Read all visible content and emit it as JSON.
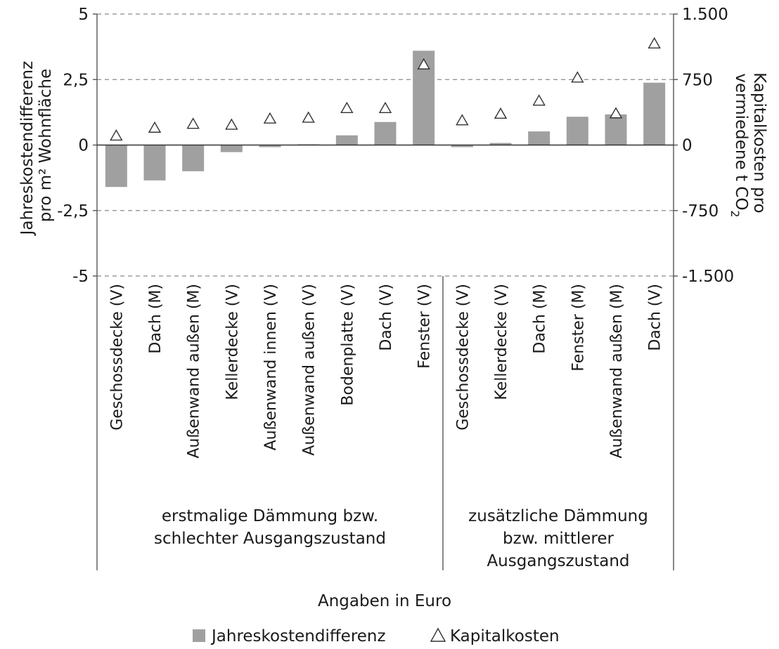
{
  "chart_data": {
    "type": "bar",
    "categories": [
      "Geschossdecke (V)",
      "Dach (M)",
      "Außenwand außen (M)",
      "Kellerdecke (V)",
      "Außenwand innen (V)",
      "Außenwand außen (V)",
      "Bodenplatte (V)",
      "Dach (V)",
      "Fenster (V)",
      "Geschossdecke (V)",
      "Kellerdecke (V)",
      "Dach (M)",
      "Fenster (M)",
      "Außenwand außen (M)",
      "Dach (V)"
    ],
    "groups": [
      {
        "label_lines": [
          "erstmalige Dämmung bzw.",
          "schlechter Ausgangszustand"
        ],
        "start": 0,
        "end": 8
      },
      {
        "label_lines": [
          "zusätzliche Dämmung",
          "bzw. mittlerer",
          "Ausgangszustand"
        ],
        "start": 9,
        "end": 14
      }
    ],
    "series": [
      {
        "name": "Jahreskostendifferenz",
        "type": "bar",
        "axis": "left",
        "color": "#a0a0a0",
        "values": [
          -1.6,
          -1.35,
          -1.0,
          -0.27,
          -0.08,
          0.03,
          0.37,
          0.88,
          3.6,
          -0.08,
          0.08,
          0.52,
          1.08,
          1.17,
          2.38
        ]
      },
      {
        "name": "Kapitalkosten",
        "type": "scatter",
        "marker": "triangle",
        "axis": "right",
        "values": [
          105,
          195,
          240,
          230,
          300,
          310,
          420,
          420,
          920,
          280,
          355,
          505,
          770,
          360,
          1160
        ]
      }
    ],
    "y_left": {
      "label_lines": [
        "Jahreskostendifferenz",
        "pro m² Wohnfläche"
      ],
      "lim": [
        -5,
        5
      ],
      "ticks": [
        5,
        2.5,
        0,
        -2.5,
        -5
      ],
      "tick_labels": [
        "5",
        "2,5",
        "0",
        "-2,5",
        "-5"
      ]
    },
    "y_right": {
      "label_lines": [
        "Kapitalkosten pro",
        "vermiedene t CO"
      ],
      "label_subscript": "2",
      "lim": [
        -1500,
        1500
      ],
      "ticks": [
        1500,
        750,
        0,
        -750,
        -1500
      ],
      "tick_labels": [
        "1.500",
        "750",
        "0",
        "-750",
        "-1.500"
      ]
    },
    "grid": true,
    "note": "Angaben in Euro",
    "legend": {
      "placement": "bottom",
      "items": [
        "Jahreskostendifferenz",
        "Kapitalkosten"
      ]
    }
  }
}
